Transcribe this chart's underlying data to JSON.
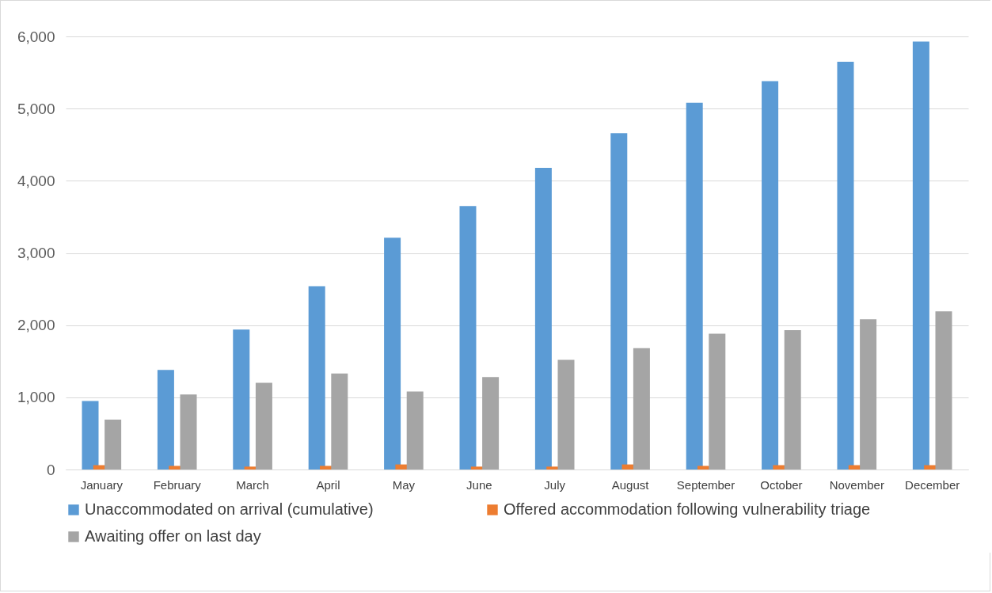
{
  "chart_data": {
    "type": "bar",
    "categories": [
      "January",
      "February",
      "March",
      "April",
      "May",
      "June",
      "July",
      "August",
      "September",
      "October",
      "November",
      "December"
    ],
    "series": [
      {
        "name": "Unaccommodated on arrival (cumulative)",
        "color": "#5b9bd5",
        "values": [
          950,
          1380,
          1940,
          2540,
          3210,
          3650,
          4180,
          4660,
          5080,
          5380,
          5650,
          5930
        ]
      },
      {
        "name": "Offered accommodation following vulnerability triage",
        "color": "#ed7d31",
        "values": [
          60,
          50,
          40,
          50,
          70,
          40,
          40,
          70,
          50,
          60,
          60,
          60
        ]
      },
      {
        "name": "Awaiting offer on last day",
        "color": "#a5a5a5",
        "values": [
          690,
          1040,
          1200,
          1330,
          1080,
          1280,
          1520,
          1680,
          1880,
          1930,
          2080,
          2190
        ]
      }
    ],
    "ylim": [
      0,
      6000
    ],
    "yticks": [
      {
        "value": 0,
        "label": "0"
      },
      {
        "value": 1000,
        "label": "1,000"
      },
      {
        "value": 2000,
        "label": "2,000"
      },
      {
        "value": 3000,
        "label": "3,000"
      },
      {
        "value": 4000,
        "label": "4,000"
      },
      {
        "value": 5000,
        "label": "5,000"
      },
      {
        "value": 6000,
        "label": "6,000"
      }
    ],
    "grid": "y",
    "legend": "bottom"
  }
}
